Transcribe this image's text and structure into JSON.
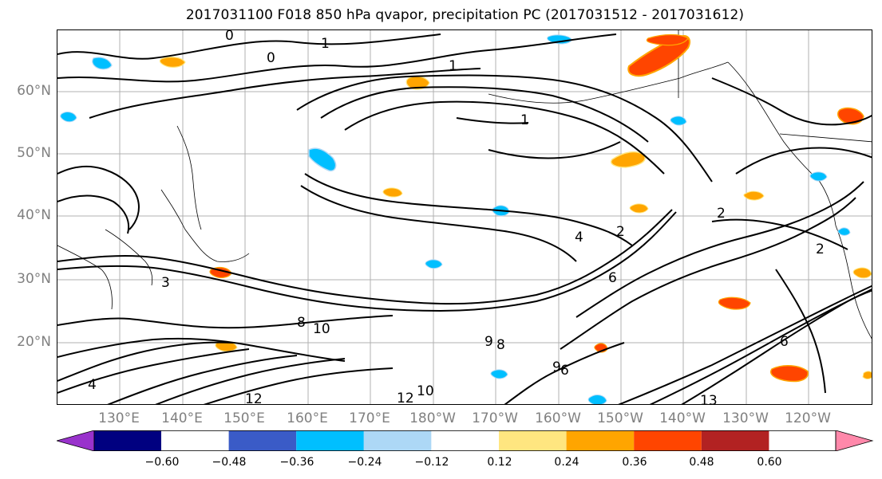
{
  "title": "2017031100 F018 850 hPa qvapor, precipitation PC (2017031512 - 2017031612)",
  "map": {
    "lat_labels": [
      "60°N",
      "50°N",
      "40°N",
      "30°N",
      "20°N"
    ],
    "lon_labels": [
      "130°E",
      "140°E",
      "150°E",
      "160°E",
      "170°E",
      "180°W",
      "170°W",
      "160°W",
      "150°W",
      "140°W",
      "130°W",
      "120°W"
    ],
    "contour_labels": [
      {
        "text": "1"
      },
      {
        "text": "0"
      },
      {
        "text": "1"
      },
      {
        "text": "0"
      },
      {
        "text": "1"
      },
      {
        "text": "2"
      },
      {
        "text": "4"
      },
      {
        "text": "2"
      },
      {
        "text": "3"
      },
      {
        "text": "6"
      },
      {
        "text": "6"
      },
      {
        "text": "8"
      },
      {
        "text": "10"
      },
      {
        "text": "9"
      },
      {
        "text": "8"
      },
      {
        "text": "12"
      },
      {
        "text": "10"
      },
      {
        "text": "6"
      },
      {
        "text": "12"
      },
      {
        "text": "13"
      },
      {
        "text": "9"
      },
      {
        "text": "4"
      },
      {
        "text": "2"
      }
    ]
  },
  "colorbar": {
    "colors": [
      "#9932CC",
      "#000080",
      "#3A5BC7",
      "#00BFFF",
      "#ADD8F6",
      "#FFFFFF",
      "#FFE680",
      "#FFA500",
      "#FF4500",
      "#B22222",
      "#FF88AA"
    ],
    "ticks": [
      "−0.60",
      "−0.48",
      "−0.36",
      "−0.24",
      "−0.12",
      "0.12",
      "0.24",
      "0.36",
      "0.48",
      "0.60"
    ]
  }
}
